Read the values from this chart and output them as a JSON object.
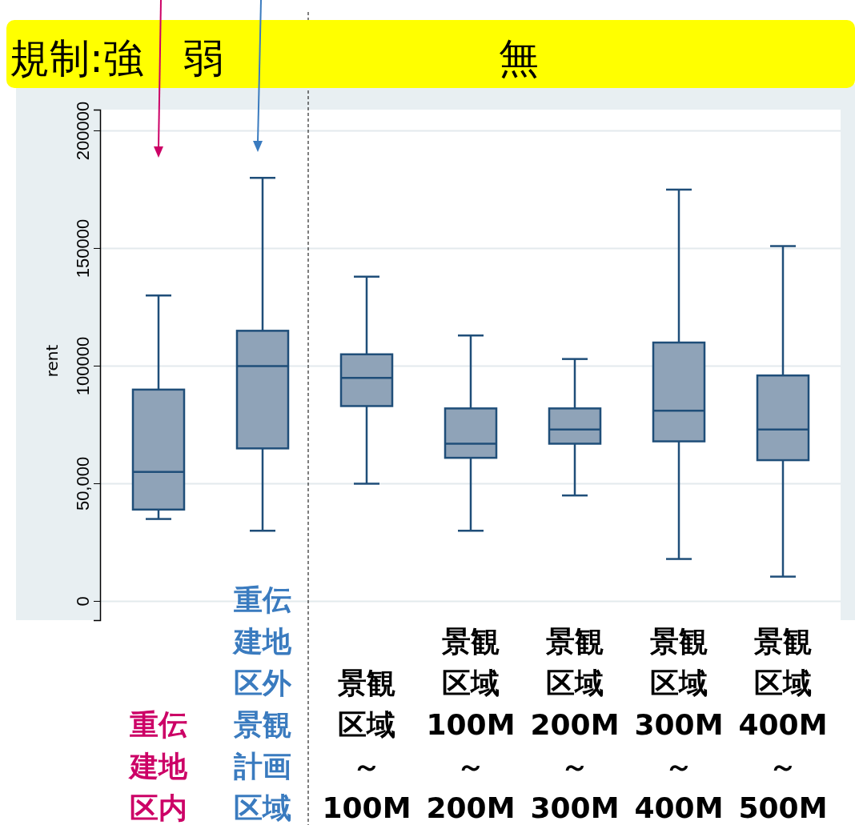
{
  "chart_data": {
    "type": "box",
    "categories": [
      "重伝建地区内",
      "重伝建地区外景観計画区域",
      "景観区域～100M",
      "景観区域100M～200M",
      "景観区域200M～300M",
      "景観区域300M～400M",
      "景観区域400M～500M"
    ],
    "boxes": [
      {
        "low": 35000,
        "q1": 39000,
        "median": 55000,
        "q3": 90000,
        "high": 130000
      },
      {
        "low": 30000,
        "q1": 65000,
        "median": 100000,
        "q3": 115000,
        "high": 180000
      },
      {
        "low": 50000,
        "q1": 83000,
        "median": 95000,
        "q3": 105000,
        "high": 138000
      },
      {
        "low": 30000,
        "q1": 61000,
        "median": 67000,
        "q3": 82000,
        "high": 113000
      },
      {
        "low": 45000,
        "q1": 67000,
        "median": 73000,
        "q3": 82000,
        "high": 103000
      },
      {
        "low": 18000,
        "q1": 68000,
        "median": 81000,
        "q3": 110000,
        "high": 175000
      },
      {
        "low": 10500,
        "q1": 60000,
        "median": 73000,
        "q3": 96000,
        "high": 151000
      }
    ],
    "color": "#8fa3b8",
    "ylabel": "rent",
    "ylim": [
      -8000,
      209000
    ],
    "yticks": [
      0,
      {
        "value": 50000,
        "label": "50,000"
      },
      100000,
      150000,
      200000
    ],
    "grid": true,
    "annotations": [
      "規制:強　弱",
      "無"
    ]
  }
}
